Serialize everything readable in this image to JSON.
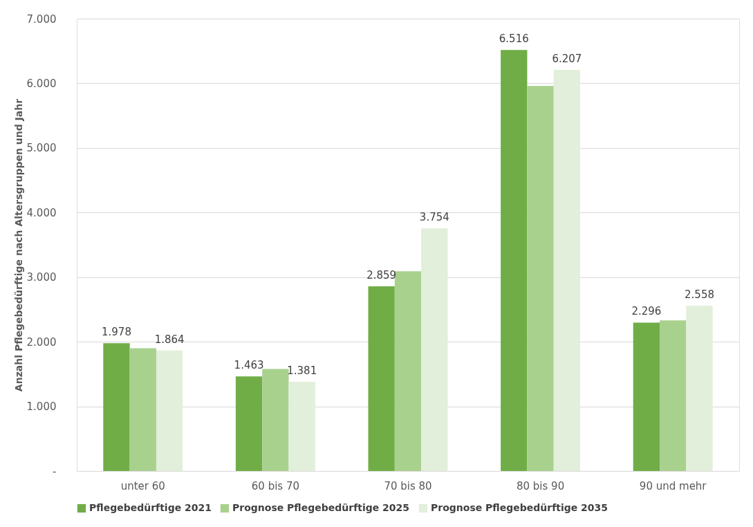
{
  "chart_data": {
    "type": "bar",
    "ylabel": "Anzahl Pflegebedürftige nach Altersgruppen und Jahr",
    "categories": [
      "unter 60",
      "60 bis 70",
      "70 bis 80",
      "80 bis 90",
      "90 und mehr"
    ],
    "series": [
      {
        "name": "Pflegebedürftige 2021",
        "color": "#70ad47",
        "values": [
          1978,
          1463,
          2859,
          6516,
          2296
        ],
        "value_labels": [
          "1.978",
          "1.463",
          "2.859",
          "6.516",
          "2.296"
        ]
      },
      {
        "name": "Prognose Pflegebedürftige 2025",
        "color": "#a9d18e",
        "values": [
          1900,
          1580,
          3090,
          5960,
          2330
        ]
      },
      {
        "name": "Prognose Pflegebedürftige 2035",
        "color": "#e2efda",
        "values": [
          1864,
          1381,
          3754,
          6207,
          2558
        ],
        "value_labels": [
          "1.864",
          "1.381",
          "3.754",
          "6.207",
          "2.558"
        ]
      }
    ],
    "ylim": [
      0,
      7000
    ],
    "yticks": [
      {
        "value": 0,
        "label": "-"
      },
      {
        "value": 1000,
        "label": "1.000"
      },
      {
        "value": 2000,
        "label": "2.000"
      },
      {
        "value": 3000,
        "label": "3.000"
      },
      {
        "value": 4000,
        "label": "4.000"
      },
      {
        "value": 5000,
        "label": "5.000"
      },
      {
        "value": 6000,
        "label": "6.000"
      },
      {
        "value": 7000,
        "label": "7.000"
      }
    ],
    "grid": "y",
    "legend": "bottom"
  }
}
